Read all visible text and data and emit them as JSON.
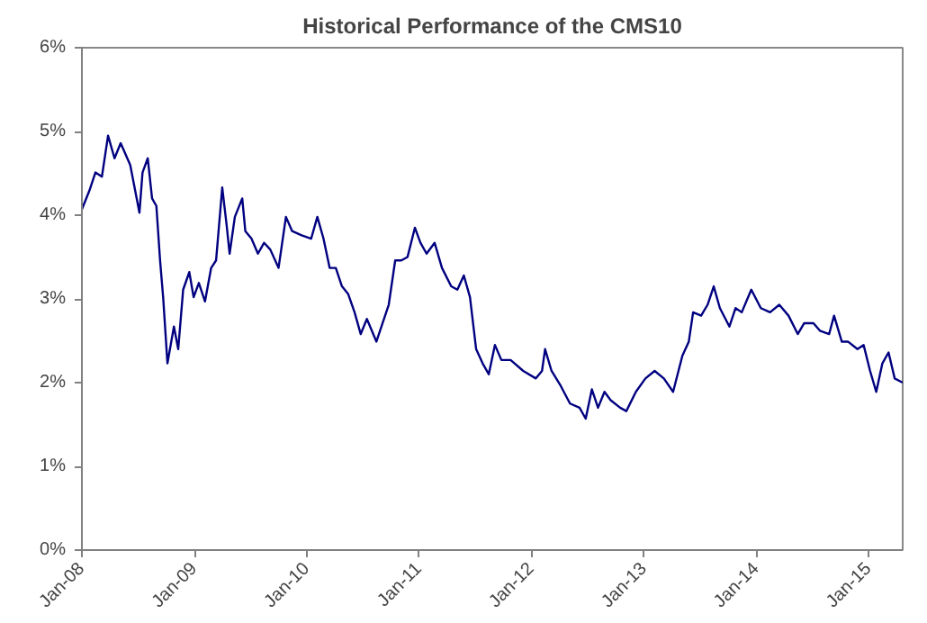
{
  "chart_data": {
    "type": "line",
    "title": "Historical Performance of the CMS10",
    "x": [
      "2008-01-01",
      "2008-01-25",
      "2008-02-14",
      "2008-03-06",
      "2008-03-26",
      "2008-04-16",
      "2008-05-06",
      "2008-06-06",
      "2008-07-06",
      "2008-07-16",
      "2008-08-02",
      "2008-08-16",
      "2008-08-30",
      "2008-09-11",
      "2008-09-21",
      "2008-10-05",
      "2008-10-26",
      "2008-11-09",
      "2008-11-25",
      "2008-12-15",
      "2008-12-29",
      "2009-01-15",
      "2009-02-04",
      "2009-02-24",
      "2009-03-12",
      "2009-04-01",
      "2009-04-15",
      "2009-04-25",
      "2009-05-12",
      "2009-06-05",
      "2009-06-15",
      "2009-07-05",
      "2009-07-26",
      "2009-08-15",
      "2009-09-04",
      "2009-10-01",
      "2009-10-25",
      "2009-11-14",
      "2009-12-15",
      "2010-01-15",
      "2010-02-04",
      "2010-02-24",
      "2010-03-16",
      "2010-04-05",
      "2010-04-25",
      "2010-05-15",
      "2010-06-05",
      "2010-06-25",
      "2010-07-15",
      "2010-08-15",
      "2010-09-04",
      "2010-09-24",
      "2010-10-15",
      "2010-11-04",
      "2010-11-24",
      "2010-12-18",
      "2011-01-05",
      "2011-01-25",
      "2011-02-20",
      "2011-03-16",
      "2011-04-15",
      "2011-05-05",
      "2011-05-26",
      "2011-06-15",
      "2011-07-05",
      "2011-07-26",
      "2011-08-15",
      "2011-09-04",
      "2011-09-25",
      "2011-10-25",
      "2011-12-05",
      "2012-01-15",
      "2012-02-04",
      "2012-02-14",
      "2012-03-06",
      "2012-04-05",
      "2012-05-05",
      "2012-06-05",
      "2012-06-25",
      "2012-07-15",
      "2012-08-04",
      "2012-08-25",
      "2012-09-14",
      "2012-10-15",
      "2012-11-04",
      "2012-12-05",
      "2013-01-05",
      "2013-02-04",
      "2013-03-06",
      "2013-04-05",
      "2013-05-05",
      "2013-05-26",
      "2013-06-09",
      "2013-07-05",
      "2013-07-26",
      "2013-08-15",
      "2013-09-04",
      "2013-10-05",
      "2013-10-25",
      "2013-11-14",
      "2013-12-15",
      "2014-01-15",
      "2014-02-14",
      "2014-03-16",
      "2014-04-15",
      "2014-05-15",
      "2014-06-05",
      "2014-07-05",
      "2014-07-26",
      "2014-08-25",
      "2014-09-10",
      "2014-10-05",
      "2014-10-25",
      "2014-11-25",
      "2014-12-15",
      "2015-01-05",
      "2015-01-25",
      "2015-02-14",
      "2015-03-06",
      "2015-03-26",
      "2015-04-21"
    ],
    "series": [
      {
        "color": "#000080",
        "values": [
          4.07,
          4.29,
          4.51,
          4.46,
          4.95,
          4.68,
          4.86,
          4.6,
          4.03,
          4.51,
          4.68,
          4.2,
          4.11,
          3.46,
          3.02,
          2.23,
          2.67,
          2.4,
          3.11,
          3.32,
          3.02,
          3.19,
          2.97,
          3.37,
          3.46,
          4.33,
          3.89,
          3.54,
          3.98,
          4.2,
          3.81,
          3.72,
          3.54,
          3.67,
          3.59,
          3.37,
          3.98,
          3.81,
          3.76,
          3.72,
          3.98,
          3.72,
          3.37,
          3.37,
          3.15,
          3.06,
          2.84,
          2.58,
          2.76,
          2.49,
          2.71,
          2.93,
          3.46,
          3.46,
          3.5,
          3.85,
          3.67,
          3.54,
          3.67,
          3.37,
          3.15,
          3.11,
          3.28,
          3.02,
          2.4,
          2.23,
          2.1,
          2.45,
          2.27,
          2.27,
          2.14,
          2.05,
          2.14,
          2.4,
          2.14,
          1.96,
          1.75,
          1.7,
          1.57,
          1.92,
          1.7,
          1.89,
          1.79,
          1.7,
          1.66,
          1.89,
          2.05,
          2.14,
          2.05,
          1.89,
          2.32,
          2.49,
          2.84,
          2.8,
          2.93,
          3.15,
          2.89,
          2.67,
          2.89,
          2.84,
          3.11,
          2.89,
          2.84,
          2.93,
          2.8,
          2.58,
          2.71,
          2.71,
          2.62,
          2.58,
          2.8,
          2.49,
          2.49,
          2.4,
          2.45,
          2.14,
          1.89,
          2.23,
          2.36,
          2.05,
          2.0
        ]
      }
    ],
    "xlim": [
      "2008-01-01",
      "2015-04-21"
    ],
    "xticks": [
      {
        "value": "2008-01-01",
        "label": "Jan-08"
      },
      {
        "value": "2009-01-01",
        "label": "Jan-09"
      },
      {
        "value": "2010-01-01",
        "label": "Jan-10"
      },
      {
        "value": "2011-01-01",
        "label": "Jan-11"
      },
      {
        "value": "2012-01-01",
        "label": "Jan-12"
      },
      {
        "value": "2013-01-01",
        "label": "Jan-13"
      },
      {
        "value": "2014-01-01",
        "label": "Jan-14"
      },
      {
        "value": "2015-01-01",
        "label": "Jan-15"
      }
    ],
    "ylim": [
      0,
      6
    ],
    "yticks": [
      {
        "value": 0,
        "label": "0%"
      },
      {
        "value": 1,
        "label": "1%"
      },
      {
        "value": 2,
        "label": "2%"
      },
      {
        "value": 3,
        "label": "3%"
      },
      {
        "value": 4,
        "label": "4%"
      },
      {
        "value": 5,
        "label": "5%"
      },
      {
        "value": 6,
        "label": "6%"
      }
    ],
    "grid": false,
    "marker": "none",
    "line_style": "solid"
  }
}
